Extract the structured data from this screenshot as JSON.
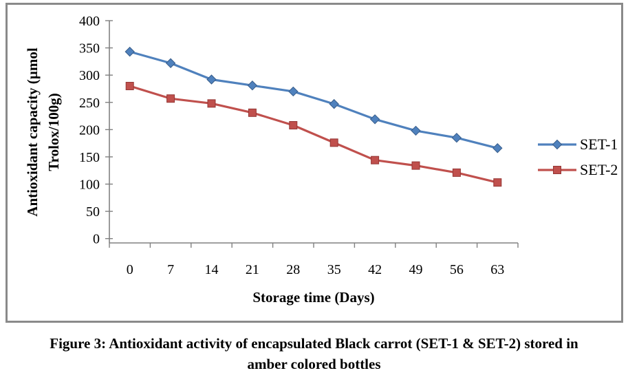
{
  "figure": {
    "caption_line1": "Figure 3: Antioxidant activity of encapsulated Black carrot (SET-1 & SET-2) stored in",
    "caption_line2": "amber colored bottles"
  },
  "chart_data": {
    "type": "line",
    "title": "",
    "xlabel": "Storage time (Days)",
    "ylabel": "Antioxidant capacity (µmol Trolox/100g)",
    "ylabel_lines": [
      "Antioxidant capacity (µmol",
      "Trolox/100g)"
    ],
    "categories": [
      "0",
      "7",
      "14",
      "21",
      "28",
      "35",
      "42",
      "49",
      "56",
      "63"
    ],
    "y_ticks": [
      "0",
      "50",
      "100",
      "150",
      "200",
      "250",
      "300",
      "350",
      "400"
    ],
    "ylim": [
      0,
      400
    ],
    "grid": false,
    "legend_position": "right",
    "axis_color": "#808080",
    "text_color": "#000000",
    "series": [
      {
        "name": "SET-1",
        "marker": "diamond",
        "color": "#4F81BD",
        "marker_stroke": "#385D8A",
        "values": [
          343,
          322,
          292,
          281,
          270,
          247,
          219,
          198,
          185,
          166
        ]
      },
      {
        "name": "SET-2",
        "marker": "square",
        "color": "#C0504D",
        "marker_stroke": "#943634",
        "values": [
          280,
          257,
          248,
          231,
          208,
          176,
          144,
          134,
          121,
          103
        ]
      }
    ]
  }
}
